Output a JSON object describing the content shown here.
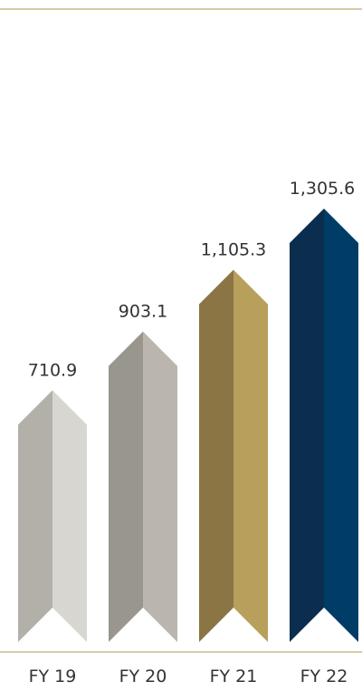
{
  "chart_data": {
    "type": "bar",
    "categories": [
      "FY 19",
      "FY 20",
      "FY 21",
      "FY 22"
    ],
    "values": [
      710.9,
      903.1,
      1105.3,
      1305.6
    ],
    "value_labels": [
      "710.9",
      "903.1",
      "1,105.3",
      "1,305.6"
    ],
    "title": "",
    "xlabel": "",
    "ylabel": "",
    "grid": false,
    "legend": "none",
    "bar_shape": "arrow-chevron",
    "colors": [
      {
        "left": "#b2b0a9",
        "right": "#d8d6d0"
      },
      {
        "left": "#98968d",
        "right": "#bab6ad"
      },
      {
        "left": "#8b7544",
        "right": "#b89f5c"
      },
      {
        "left": "#0b2e4e",
        "right": "#003d66"
      }
    ],
    "rule_color": "#c8b98a"
  }
}
